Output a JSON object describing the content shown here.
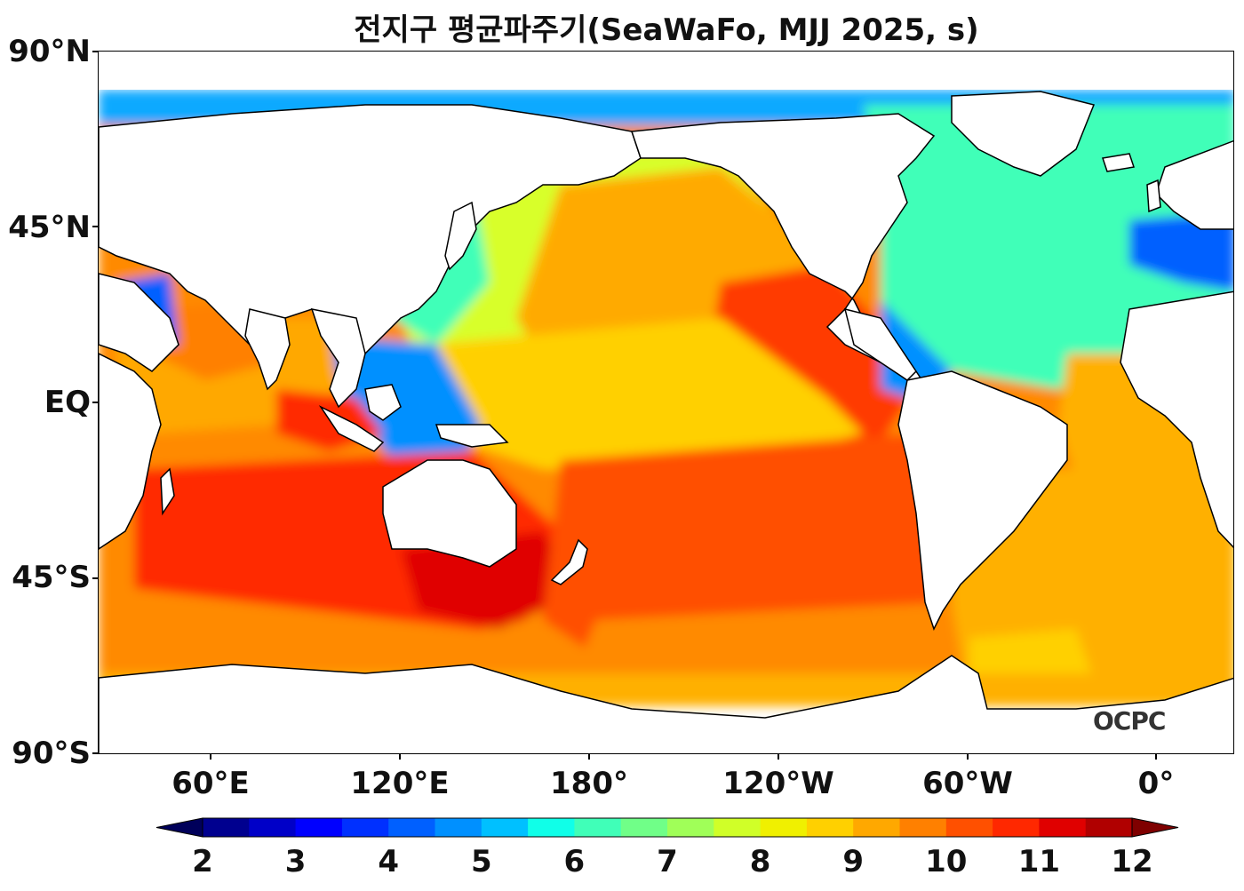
{
  "title": "전지구 평균파주기(SeaWaFo, MJJ 2025, s)",
  "map": {
    "lat_labels": [
      "90°N",
      "45°N",
      "EQ",
      "45°S",
      "90°S"
    ],
    "lon_labels": [
      "60°E",
      "120°E",
      "180°",
      "120°W",
      "60°W",
      "0°"
    ],
    "ocean_colors": {
      "arctic": "#0aa9ff",
      "north_atlantic": "#33ffaa",
      "north_pacific_west": "#d8ff2a",
      "north_pacific_east": "#ffaa00",
      "east_pacific_eq": "#ff3a00",
      "south_ocean": "#ff7a00",
      "south_indian": "#ff2a00",
      "south_atlantic": "#ffb000",
      "coastal": "#0066ff"
    },
    "logo": "OCPC"
  },
  "colorbar": {
    "ticks": [
      "2",
      "3",
      "4",
      "5",
      "6",
      "7",
      "8",
      "9",
      "10",
      "11",
      "12"
    ],
    "min": 2,
    "max": 12,
    "step": 0.5,
    "colors": [
      "#00008f",
      "#0000c8",
      "#0000ff",
      "#0030ff",
      "#0060ff",
      "#0090ff",
      "#00c0ff",
      "#10ffe8",
      "#40ffb8",
      "#70ff88",
      "#a0ff58",
      "#d0ff28",
      "#f0f000",
      "#ffd000",
      "#ffa800",
      "#ff8000",
      "#ff5000",
      "#ff2800",
      "#e00000",
      "#b00000"
    ],
    "under_color": "#00005a",
    "over_color": "#7f0000"
  }
}
